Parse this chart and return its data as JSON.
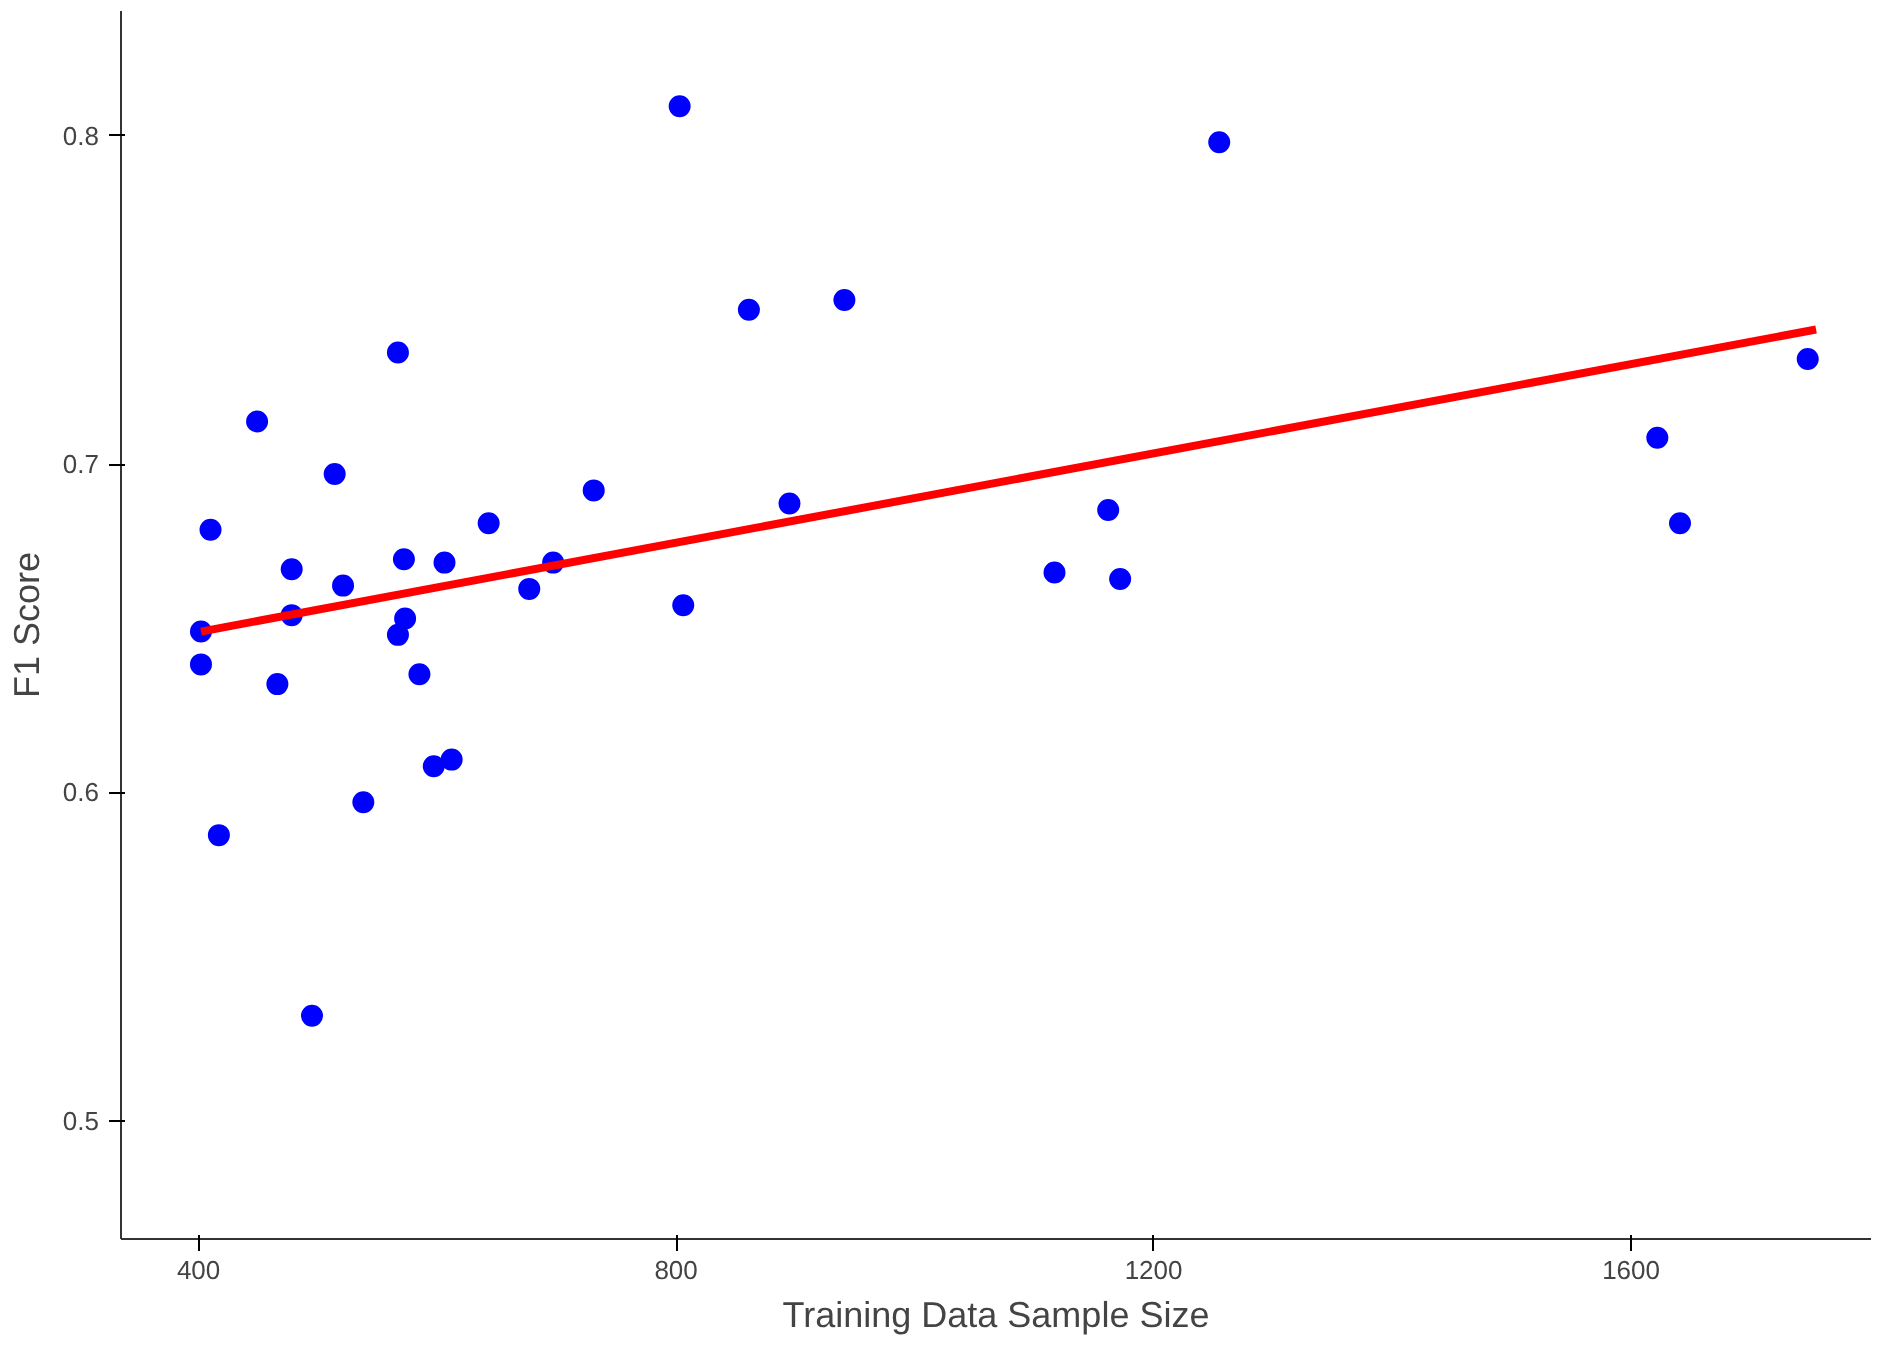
{
  "chart_data": {
    "type": "scatter",
    "xlabel": "Training Data Sample Size",
    "ylabel": "F1 Score",
    "xlim": [
      335,
      1801
    ],
    "ylim": [
      0.464,
      0.838
    ],
    "xticks": [
      400,
      800,
      1200,
      1600
    ],
    "yticks": [
      0.5,
      0.6,
      0.7,
      0.8
    ],
    "grid": false,
    "series": [
      {
        "marker": "circle",
        "color": "#0000ff",
        "x": [
          402,
          402,
          410,
          417,
          449,
          466,
          478,
          478,
          495,
          514,
          521,
          538,
          567,
          567,
          572,
          573,
          585,
          597,
          606,
          612,
          643,
          677,
          697,
          731,
          803,
          806,
          861,
          895,
          941,
          1117,
          1162,
          1172,
          1255,
          1622,
          1641,
          1748
        ],
        "values": [
          0.649,
          0.639,
          0.68,
          0.587,
          0.713,
          0.633,
          0.668,
          0.654,
          0.532,
          0.697,
          0.663,
          0.597,
          0.734,
          0.648,
          0.671,
          0.653,
          0.636,
          0.608,
          0.67,
          0.61,
          0.682,
          0.662,
          0.67,
          0.692,
          0.809,
          0.657,
          0.747,
          0.688,
          0.75,
          0.667,
          0.686,
          0.665,
          0.798,
          0.708,
          0.682,
          0.732
        ]
      },
      {
        "type": "line",
        "color": "#ff0000",
        "line_style": "solid",
        "x": [
          402,
          1755
        ],
        "values": [
          0.649,
          0.741
        ]
      }
    ]
  }
}
